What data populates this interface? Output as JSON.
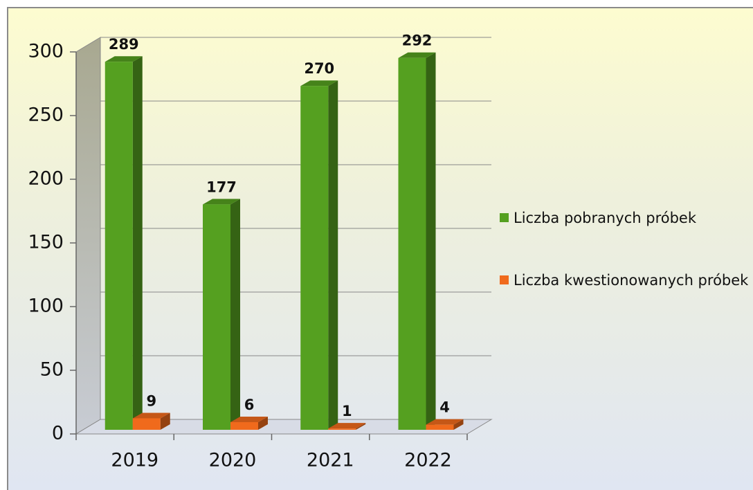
{
  "chart_data": {
    "type": "bar3d",
    "categories": [
      "2019",
      "2020",
      "2021",
      "2022"
    ],
    "series": [
      {
        "name": "Liczba pobranych próbek",
        "color": "#55a020",
        "values": [
          289,
          177,
          270,
          292
        ]
      },
      {
        "name": "Liczba kwestionowanych próbek",
        "color": "#f06a1c",
        "values": [
          9,
          6,
          1,
          4
        ]
      }
    ],
    "ylim": [
      0,
      300
    ],
    "yticks": [
      0,
      50,
      100,
      150,
      200,
      250,
      300
    ],
    "grid": true,
    "legend": "right"
  }
}
